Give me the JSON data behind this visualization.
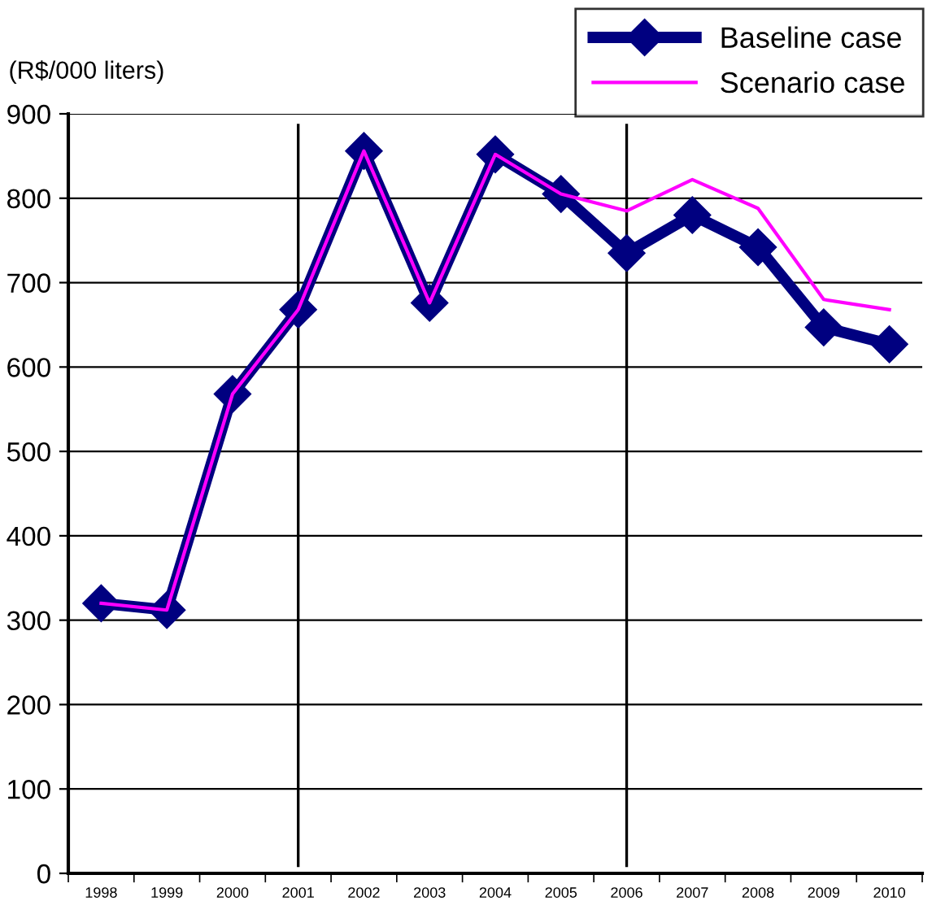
{
  "chart_data": {
    "type": "line",
    "ylabel": "(R$/000 liters)",
    "categories": [
      "1998",
      "1999",
      "2000",
      "2001",
      "2002",
      "2003",
      "2004",
      "2005",
      "2006",
      "2007",
      "2008",
      "2009",
      "2010"
    ],
    "series": [
      {
        "name": "Baseline case",
        "color": "#000080",
        "marker": "diamond",
        "line_style": "solid",
        "values": [
          320,
          312,
          568,
          668,
          856,
          676,
          852,
          805,
          735,
          780,
          742,
          647,
          627
        ]
      },
      {
        "name": "Scenario case",
        "color": "#ff00ff",
        "marker": "none",
        "line_style": "solid",
        "values": [
          320,
          312,
          568,
          668,
          856,
          676,
          852,
          805,
          785,
          822,
          788,
          680,
          668
        ]
      }
    ],
    "ylim": [
      0,
      900
    ],
    "yticks": [
      0,
      100,
      200,
      300,
      400,
      500,
      600,
      700,
      800,
      900
    ],
    "ref_lines": [
      {
        "axis": "x",
        "value": "2001",
        "color": "#000000"
      },
      {
        "axis": "x",
        "value": "2006",
        "color": "#000000"
      }
    ],
    "grid": "y",
    "legend": "top right"
  }
}
